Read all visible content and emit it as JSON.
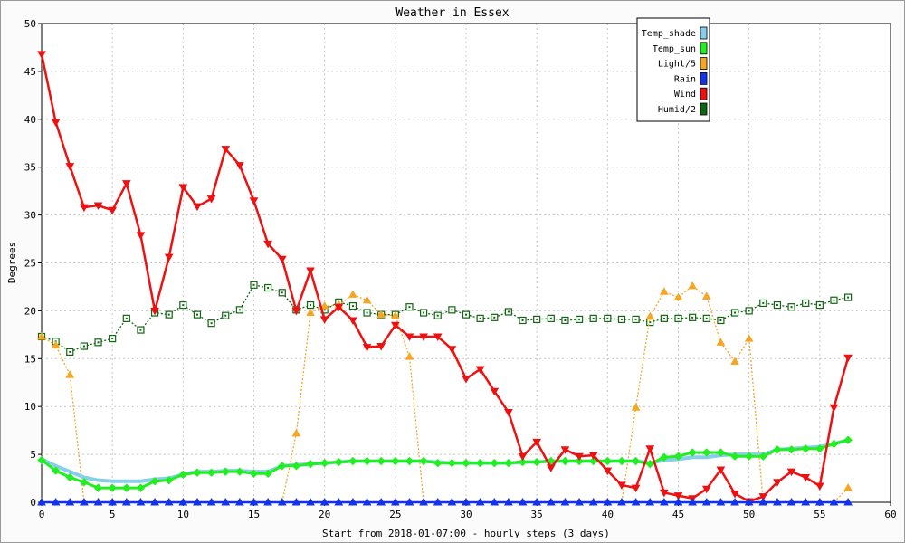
{
  "chart_data": {
    "type": "line",
    "title": "Weather in Essex",
    "xlabel": "Start from 2018-01-07:00 - hourly steps (3 days)",
    "ylabel": "Degrees",
    "xlim": [
      0,
      60
    ],
    "ylim": [
      0,
      50
    ],
    "x_ticks": [
      0,
      5,
      10,
      15,
      20,
      25,
      30,
      35,
      40,
      45,
      50,
      55,
      60
    ],
    "y_ticks": [
      0,
      5,
      10,
      15,
      20,
      25,
      30,
      35,
      40,
      45,
      50
    ],
    "grid": true,
    "legend_position": "top-right",
    "series": [
      {
        "name": "Temp_shade",
        "color": "#87ceeb",
        "marker": "none",
        "values": [
          4.5,
          3.8,
          3.2,
          2.6,
          2.3,
          2.2,
          2.2,
          2.2,
          2.4,
          2.5,
          2.9,
          3.2,
          3.2,
          3.3,
          3.3,
          3.2,
          3.2,
          3.8,
          3.9,
          4.0,
          4.1,
          4.2,
          4.3,
          4.3,
          4.3,
          4.3,
          4.3,
          4.3,
          4.2,
          4.1,
          4.1,
          4.1,
          4.1,
          4.1,
          4.2,
          4.2,
          4.3,
          4.3,
          4.3,
          4.3,
          4.3,
          4.3,
          4.3,
          4.1,
          4.4,
          4.5,
          4.7,
          4.7,
          4.9,
          5.0,
          5.0,
          5.0,
          5.5,
          5.6,
          5.7,
          5.8,
          6.1,
          6.5
        ]
      },
      {
        "name": "Temp_sun",
        "color": "#22ee22",
        "marker": "diamond",
        "values": [
          4.4,
          3.3,
          2.6,
          2.1,
          1.5,
          1.5,
          1.5,
          1.5,
          2.2,
          2.3,
          2.9,
          3.1,
          3.1,
          3.2,
          3.2,
          3.0,
          3.0,
          3.8,
          3.8,
          4.0,
          4.1,
          4.2,
          4.3,
          4.3,
          4.3,
          4.3,
          4.3,
          4.3,
          4.1,
          4.1,
          4.1,
          4.1,
          4.1,
          4.1,
          4.2,
          4.2,
          4.3,
          4.3,
          4.3,
          4.3,
          4.3,
          4.3,
          4.3,
          4.0,
          4.7,
          4.8,
          5.2,
          5.2,
          5.2,
          4.8,
          4.8,
          4.8,
          5.5,
          5.5,
          5.6,
          5.6,
          6.1,
          6.5
        ]
      },
      {
        "name": "Light/5",
        "color": "#f5a623",
        "marker": "triangle-up",
        "values": [
          17.3,
          16.4,
          13.3,
          0,
          0,
          0,
          0,
          0,
          0,
          0,
          0,
          0,
          0,
          0,
          0,
          0,
          0,
          0,
          7.2,
          19.8,
          20.5,
          20.6,
          21.7,
          21.1,
          19.6,
          19.5,
          15.2,
          0,
          0,
          0,
          0,
          0,
          0,
          0,
          0,
          0,
          0,
          0,
          0,
          0,
          0,
          0,
          9.9,
          19.4,
          22.0,
          21.4,
          22.6,
          21.5,
          16.7,
          14.7,
          17.1,
          0,
          0,
          0,
          0,
          0,
          0,
          1.5
        ]
      },
      {
        "name": "Rain",
        "color": "#1133ee",
        "marker": "triangle-up",
        "values": [
          0,
          0,
          0,
          0,
          0,
          0,
          0,
          0,
          0,
          0,
          0,
          0,
          0,
          0,
          0,
          0,
          0,
          0,
          0,
          0,
          0,
          0,
          0,
          0,
          0,
          0,
          0,
          0,
          0,
          0,
          0,
          0,
          0,
          0,
          0,
          0,
          0,
          0,
          0,
          0,
          0,
          0,
          0,
          0,
          0,
          0,
          0,
          0,
          0,
          0,
          0,
          0,
          0,
          0,
          0,
          0,
          0,
          0
        ]
      },
      {
        "name": "Wind",
        "color": "#ee1111",
        "marker": "triangle-down",
        "values": [
          46.8,
          39.7,
          35.1,
          30.8,
          31.0,
          30.5,
          33.3,
          27.9,
          20.0,
          25.6,
          32.9,
          30.9,
          31.7,
          36.9,
          35.2,
          31.5,
          27.0,
          25.4,
          20.0,
          24.2,
          19.1,
          20.4,
          19.0,
          16.2,
          16.3,
          18.5,
          17.3,
          17.3,
          17.3,
          16.0,
          12.9,
          13.9,
          11.6,
          9.4,
          4.8,
          6.3,
          3.6,
          5.5,
          4.8,
          4.9,
          3.3,
          1.8,
          1.5,
          5.6,
          1.0,
          0.7,
          0.4,
          1.4,
          3.4,
          0.9,
          0.1,
          0.6,
          2.1,
          3.2,
          2.6,
          1.7,
          9.9,
          15.1
        ]
      },
      {
        "name": "Humid/2",
        "color": "#116611",
        "marker": "square",
        "values": [
          17.3,
          16.8,
          15.7,
          16.3,
          16.7,
          17.1,
          19.2,
          18.0,
          19.8,
          19.6,
          20.6,
          19.6,
          18.7,
          19.5,
          20.1,
          22.7,
          22.4,
          21.9,
          20.1,
          20.6,
          20.1,
          20.9,
          20.5,
          19.8,
          19.6,
          19.6,
          20.4,
          19.8,
          19.5,
          20.1,
          19.6,
          19.2,
          19.3,
          19.9,
          19.0,
          19.1,
          19.2,
          19.0,
          19.1,
          19.2,
          19.2,
          19.1,
          19.1,
          18.8,
          19.2,
          19.2,
          19.3,
          19.2,
          19.0,
          19.8,
          20.0,
          20.8,
          20.6,
          20.4,
          20.8,
          20.6,
          21.1,
          21.4
        ]
      }
    ]
  }
}
